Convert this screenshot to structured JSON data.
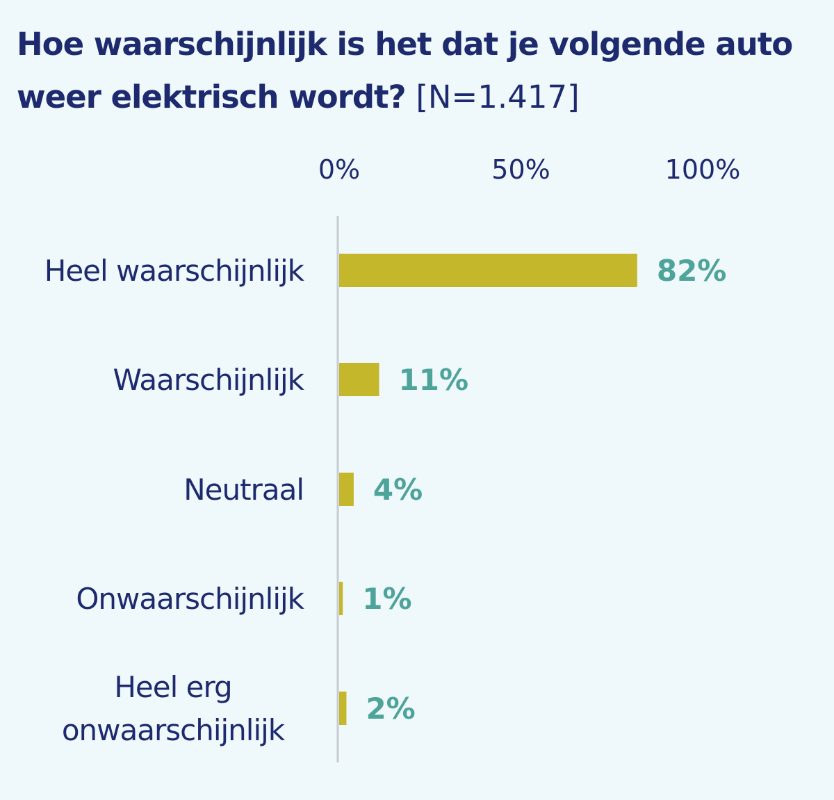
{
  "chart_data": {
    "type": "bar",
    "orientation": "horizontal",
    "title": "Hoe waarschijnlijk is het dat je volgende auto weer elektrisch wordt?",
    "subtitle": "[N=1.417]",
    "categories": [
      "Heel waarschijnlijk",
      "Waarschijnlijk",
      "Neutraal",
      "Onwaarschijnlijk",
      "Heel erg onwaarschijnlijk"
    ],
    "category_lines": [
      [
        "Heel waarschijnlijk"
      ],
      [
        "Waarschijnlijk"
      ],
      [
        "Neutraal"
      ],
      [
        "Onwaarschijnlijk"
      ],
      [
        "Heel erg",
        "onwaarschijnlijk"
      ]
    ],
    "values": [
      82,
      11,
      4,
      1,
      2
    ],
    "data_labels": [
      "82%",
      "11%",
      "4%",
      "1%",
      "2%"
    ],
    "xlim": [
      0,
      100
    ],
    "x_ticks": [
      0,
      50,
      100
    ],
    "x_tick_labels": [
      "0%",
      "50%",
      "100%"
    ],
    "x_axis_position": "top",
    "grid": false,
    "legend": "none",
    "colors": {
      "background": "#eff8fb",
      "bar": "#c5b72c",
      "title": "#1e2a6e",
      "category_text": "#1e2a6e",
      "value_text": "#4ea39a",
      "axis_line": "#c7cbd3"
    }
  }
}
